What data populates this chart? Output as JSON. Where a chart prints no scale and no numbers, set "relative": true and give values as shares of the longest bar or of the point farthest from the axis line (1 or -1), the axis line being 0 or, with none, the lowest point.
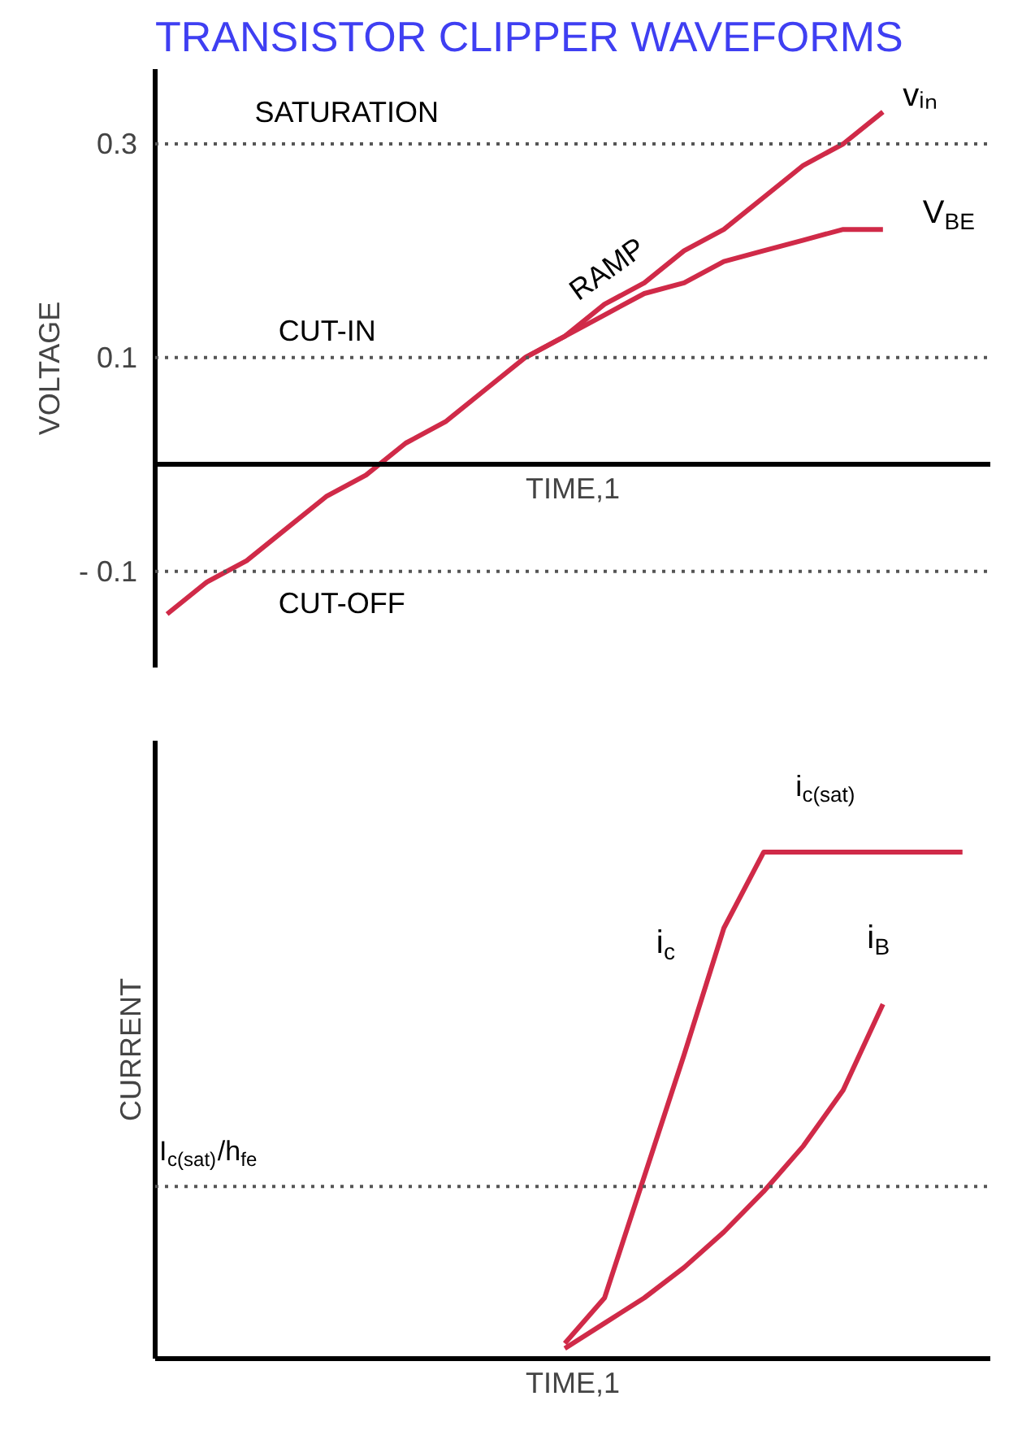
{
  "chart_data": [
    {
      "type": "line",
      "title": "TRANSISTOR CLIPPER WAVEFORMS",
      "ylabel": "VOLTAGE",
      "xlabel": "TIME,1",
      "categories": [
        null,
        null,
        null,
        null,
        null,
        null,
        null,
        null,
        null,
        null,
        null,
        null,
        null,
        null,
        null,
        null,
        null,
        null,
        null,
        null,
        null
      ],
      "series": [
        {
          "name": "vᵢₙ",
          "color": "#d02a48",
          "values": [
            -0.14,
            -0.11,
            -0.09,
            -0.06,
            -0.03,
            -0.01,
            0.02,
            0.04,
            0.07,
            0.1,
            0.12,
            0.15,
            0.17,
            0.2,
            0.22,
            0.25,
            0.28,
            0.3,
            0.33,
            null,
            null
          ]
        },
        {
          "name": "V$_{BE}$",
          "color": "#d02a48",
          "values": [
            null,
            null,
            null,
            null,
            null,
            null,
            null,
            null,
            null,
            0.1,
            0.12,
            0.14,
            0.16,
            0.17,
            0.19,
            0.2,
            0.21,
            0.22,
            0.22,
            null,
            null
          ]
        }
      ],
      "ylim": [
        -0.19,
        0.37
      ],
      "yticks": [
        {
          "value": -0.1,
          "label": "- 0.1"
        },
        0.1,
        0.3
      ],
      "ref_lines": [
        {
          "axis": "y",
          "value": 0.3,
          "line_style": "dotted",
          "color": "#555555"
        },
        {
          "axis": "y",
          "value": 0.1,
          "line_style": "dotted",
          "color": "#555555"
        },
        {
          "axis": "y",
          "value": -0.1,
          "line_style": "dotted",
          "color": "#555555"
        }
      ],
      "annotations": [
        "SATURATION",
        "CUT-IN",
        "CUT-OFF",
        "RAMP"
      ],
      "tick_labels": "y"
    },
    {
      "type": "line",
      "ylabel": "CURRENT",
      "xlabel": "TIME,1",
      "relative": true,
      "categories": [
        null,
        null,
        null,
        null,
        null,
        null,
        null,
        null,
        null,
        null,
        null,
        null,
        null,
        null,
        null,
        null,
        null,
        null,
        null,
        null,
        null
      ],
      "series": [
        {
          "name": "i$_{c}$",
          "color": "#d02a48",
          "values": [
            null,
            null,
            null,
            null,
            null,
            null,
            null,
            null,
            null,
            null,
            0.03,
            0.12,
            0.36,
            0.6,
            0.85,
            1,
            1,
            1,
            1,
            1,
            1
          ]
        },
        {
          "name": "i$_{B}$",
          "color": "#d02a48",
          "values": [
            null,
            null,
            null,
            null,
            null,
            null,
            null,
            null,
            null,
            null,
            0.02,
            0.07,
            0.12,
            0.18,
            0.25,
            0.33,
            0.42,
            0.53,
            0.7,
            null,
            null
          ]
        }
      ],
      "ref_lines": [
        {
          "axis": "y",
          "value": 0.34,
          "label": "I$_{c(sat)}$/h$_{fe}$",
          "line_style": "dotted",
          "color": "#555555"
        }
      ],
      "annotations": [
        "i$_{c(sat)}$"
      ],
      "tick_labels": false
    }
  ]
}
